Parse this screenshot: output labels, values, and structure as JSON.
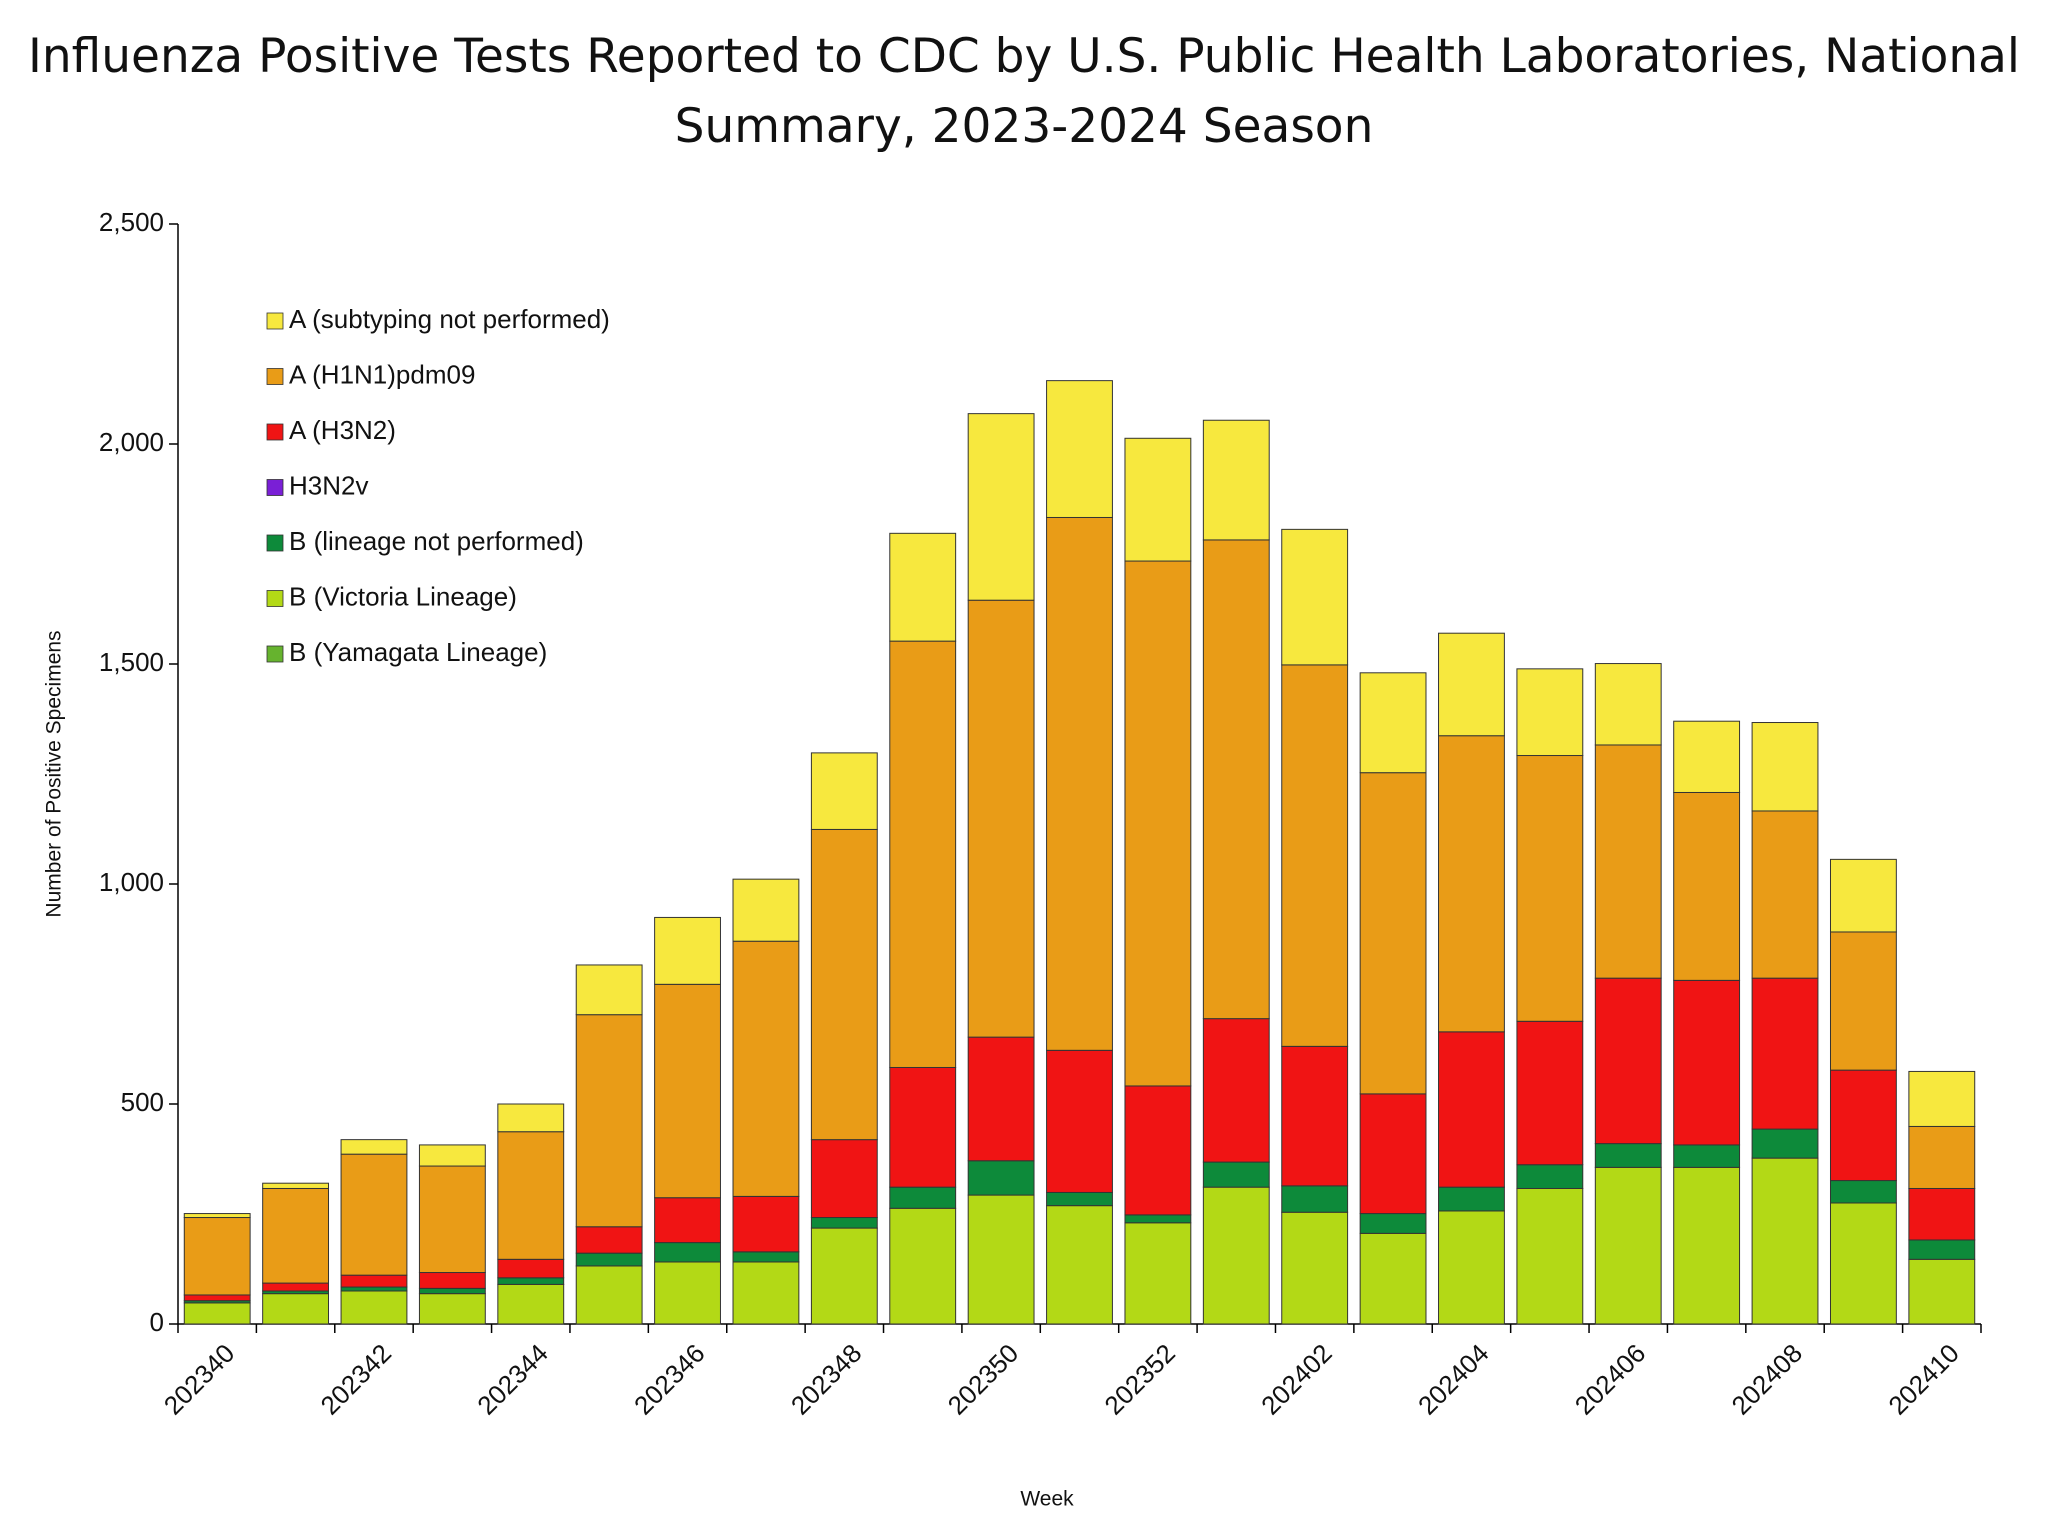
{
  "chart_data": {
    "type": "stacked_bar",
    "title": "Influenza Positive Tests Reported to CDC by U.S. Public Health Laboratories, National Summary, 2023-2024 Season",
    "xlabel": "Week",
    "ylabel": "Number of Positive Specimens",
    "categories": [
      "202340",
      null,
      "202342",
      null,
      "202344",
      null,
      "202346",
      null,
      "202348",
      null,
      "202350",
      null,
      "202352",
      null,
      "202402",
      null,
      "202404",
      null,
      "202406",
      null,
      "202408",
      null,
      "202410"
    ],
    "series": [
      {
        "name": "A (subtyping not performed)",
        "color": "#f7e83e",
        "values": [
          9,
          12,
          33,
          48,
          63,
          113,
          152,
          141,
          174,
          245,
          424,
          311,
          279,
          272,
          308,
          227,
          233,
          197,
          185,
          162,
          201,
          165,
          125
        ]
      },
      {
        "name": "A (H1N1)pdm09",
        "color": "#e99c17",
        "values": [
          176,
          215,
          275,
          242,
          290,
          482,
          485,
          580,
          705,
          969,
          993,
          1211,
          1193,
          1088,
          867,
          730,
          673,
          604,
          530,
          427,
          380,
          314,
          141
        ]
      },
      {
        "name": "A (H3N2)",
        "color": "#f01414",
        "values": [
          13,
          18,
          27,
          36,
          42,
          60,
          102,
          126,
          177,
          272,
          281,
          323,
          293,
          326,
          317,
          272,
          353,
          326,
          376,
          374,
          343,
          251,
          117
        ]
      },
      {
        "name": "H3N2v",
        "color": "#7a1fd6",
        "values": [
          0,
          0,
          0,
          0,
          0,
          0,
          0,
          0,
          0,
          0,
          0,
          0,
          0,
          0,
          0,
          0,
          0,
          0,
          0,
          0,
          0,
          0,
          0
        ]
      },
      {
        "name": "B (lineage not performed)",
        "color": "#0d8a3a",
        "values": [
          5,
          6,
          9,
          12,
          15,
          29,
          44,
          23,
          24,
          48,
          78,
          30,
          18,
          57,
          60,
          45,
          54,
          54,
          54,
          51,
          66,
          51,
          44
        ]
      },
      {
        "name": "B (Victoria Lineage)",
        "color": "#b3d916",
        "values": [
          48,
          69,
          75,
          69,
          90,
          132,
          141,
          141,
          218,
          263,
          293,
          269,
          230,
          311,
          254,
          206,
          257,
          308,
          356,
          356,
          377,
          275,
          147
        ]
      },
      {
        "name": "B (Yamagata Lineage)",
        "color": "#66b32e",
        "values": [
          0,
          0,
          0,
          0,
          0,
          0,
          0,
          0,
          0,
          0,
          0,
          0,
          0,
          0,
          0,
          0,
          0,
          0,
          0,
          0,
          0,
          0,
          0
        ]
      }
    ],
    "ylim": [
      0,
      2500
    ],
    "yticks": [
      0,
      500,
      {
        "value": 1000,
        "label": "1,000"
      },
      {
        "value": 1500,
        "label": "1,500"
      },
      {
        "value": 2000,
        "label": "2,000"
      },
      {
        "value": 2500,
        "label": "2,500"
      }
    ],
    "grid": false,
    "legend_position": "upper left"
  }
}
